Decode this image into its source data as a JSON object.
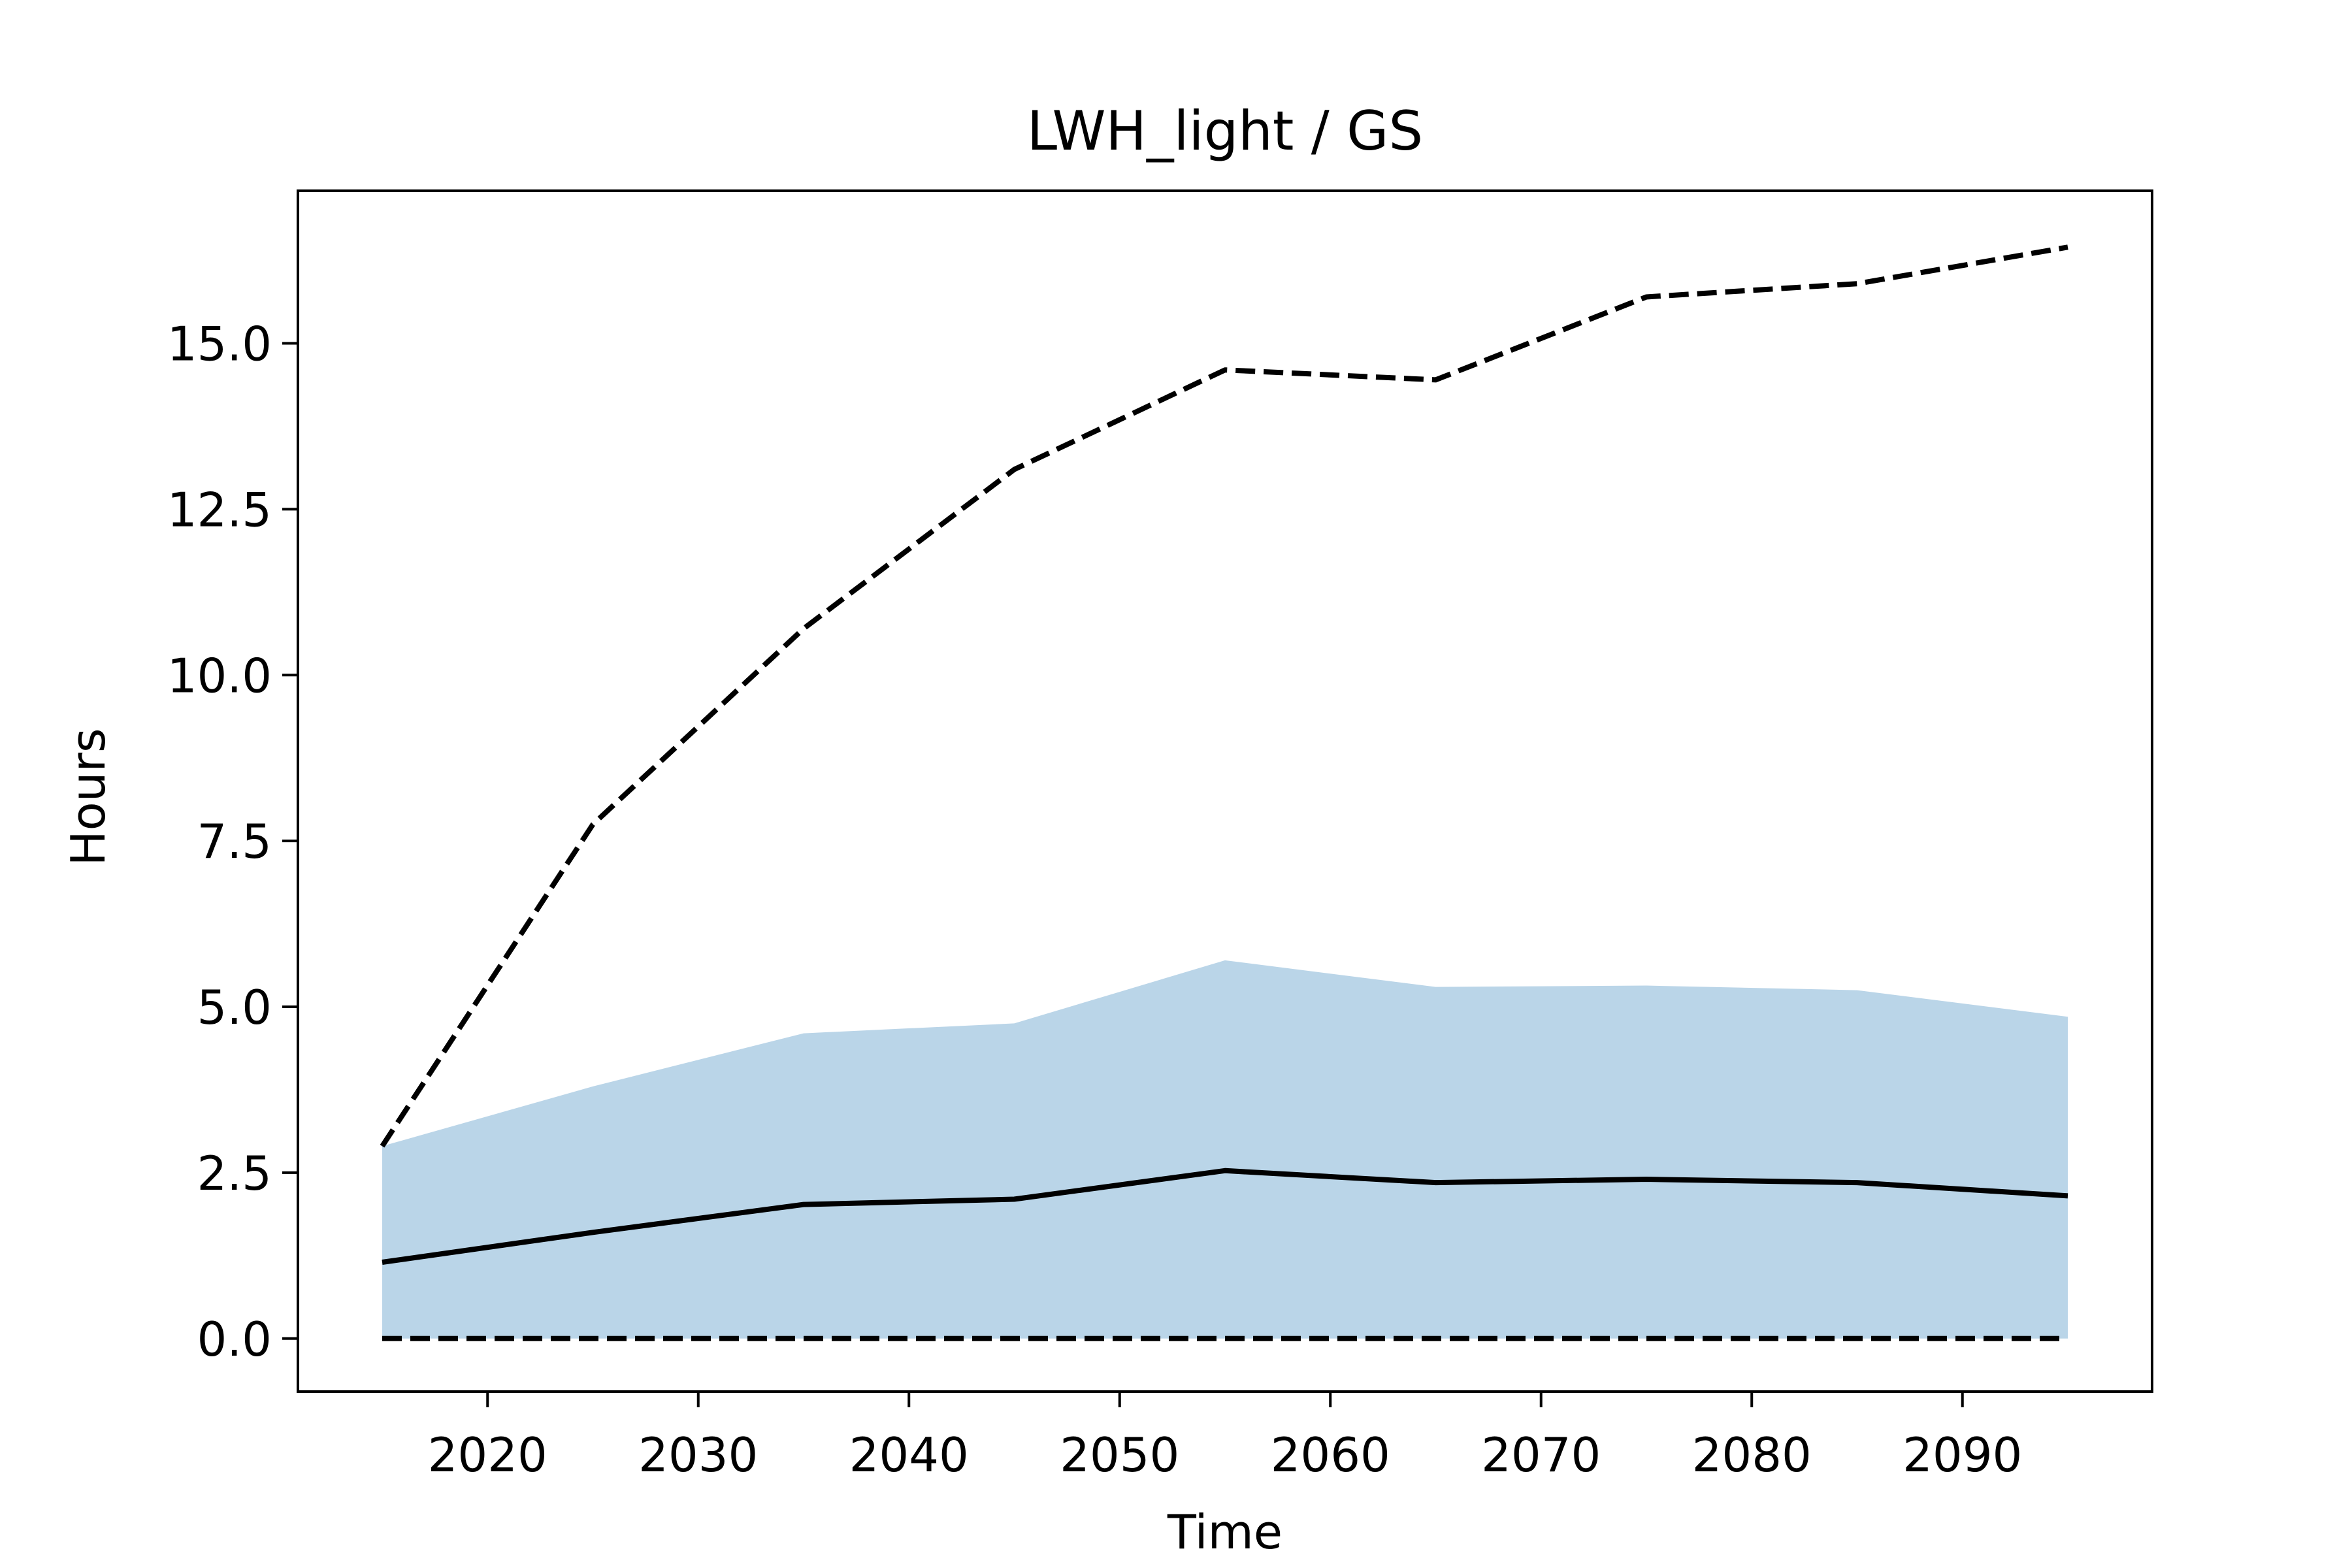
{
  "chart_data": {
    "type": "line",
    "title": "LWH_light / GS",
    "xlabel": "Time",
    "ylabel": "Hours",
    "xlim": [
      2011,
      2099
    ],
    "ylim": [
      -0.8,
      17.3
    ],
    "xticks": [
      2020,
      2030,
      2040,
      2050,
      2060,
      2070,
      2080,
      2090
    ],
    "yticks": [
      0.0,
      2.5,
      5.0,
      7.5,
      10.0,
      12.5,
      15.0
    ],
    "ytick_labels": [
      "0.0",
      "2.5",
      "5.0",
      "7.5",
      "10.0",
      "12.5",
      "15.0"
    ],
    "grid": false,
    "x": [
      2015,
      2025,
      2035,
      2045,
      2055,
      2065,
      2075,
      2085,
      2095
    ],
    "band": {
      "lower": [
        0,
        0,
        0,
        0,
        0,
        0,
        0,
        0,
        0
      ],
      "upper": [
        2.9,
        3.8,
        4.6,
        4.75,
        5.7,
        5.3,
        5.32,
        5.25,
        4.85
      ],
      "color": "#bad5e8"
    },
    "series": [
      {
        "style": "solid",
        "color": "#000000",
        "values": [
          1.15,
          1.6,
          2.02,
          2.1,
          2.53,
          2.35,
          2.4,
          2.35,
          2.15
        ]
      },
      {
        "style": "dashed",
        "color": "#000000",
        "values": [
          2.9,
          7.75,
          10.7,
          13.1,
          14.6,
          14.45,
          15.7,
          15.9,
          16.45
        ]
      },
      {
        "style": "dashed",
        "color": "#000000",
        "values": [
          0,
          0,
          0,
          0,
          0,
          0,
          0,
          0,
          0
        ]
      }
    ]
  }
}
